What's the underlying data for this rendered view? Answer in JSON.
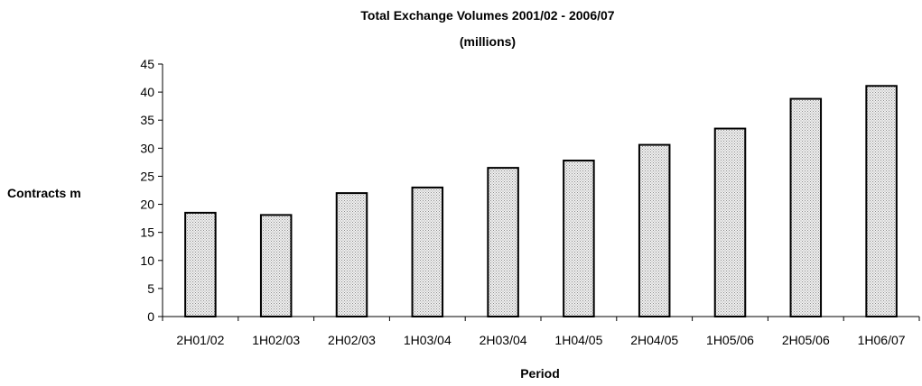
{
  "chart_data": {
    "type": "bar",
    "title": "Total Exchange Volumes 2001/02 - 2006/07",
    "subtitle": "(millions)",
    "xlabel": "Period",
    "ylabel": "Contracts  m",
    "categories": [
      "2H01/02",
      "1H02/03",
      "2H02/03",
      "1H03/04",
      "2H03/04",
      "1H04/05",
      "2H04/05",
      "1H05/06",
      "2H05/06",
      "1H06/07"
    ],
    "values": [
      18.5,
      18.1,
      22.0,
      23.0,
      26.5,
      27.8,
      30.6,
      33.5,
      38.8,
      41.1
    ],
    "ylim": [
      0,
      45
    ],
    "yticks": [
      0,
      5,
      10,
      15,
      20,
      25,
      30,
      35,
      40,
      45
    ],
    "grid": false,
    "legend": "none",
    "bar_fill": "#dcdcdc",
    "bar_stroke": "#000000"
  }
}
